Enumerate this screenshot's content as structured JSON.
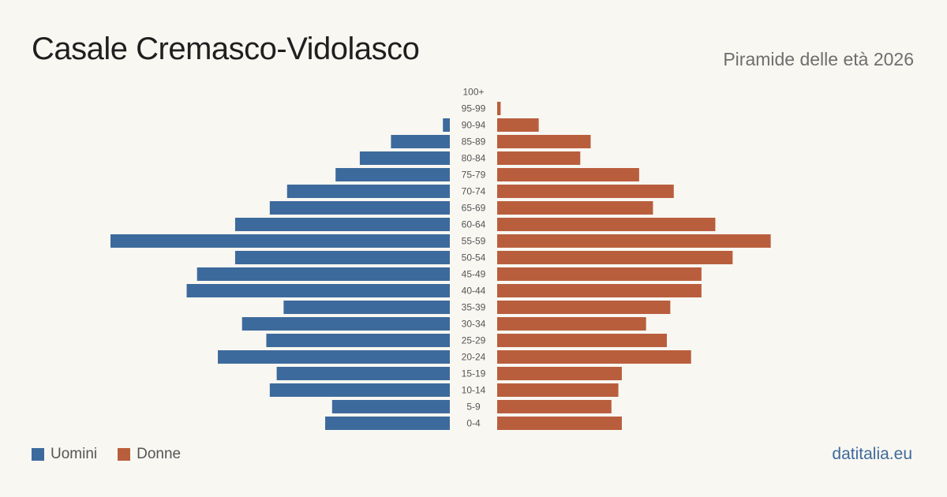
{
  "header": {
    "title": "Casale Cremasco-Vidolasco",
    "subtitle": "Piramide delle età 2026"
  },
  "legend": {
    "men_label": "Uomini",
    "women_label": "Donne"
  },
  "footer": {
    "source": "datitalia.eu"
  },
  "colors": {
    "men": "#3d6a9c",
    "women": "#b95e3d",
    "age_label": "#555555"
  },
  "chart_data": {
    "type": "bar",
    "orientation": "horizontal-pyramid",
    "categories": [
      "100+",
      "95-99",
      "90-94",
      "85-89",
      "80-84",
      "75-79",
      "70-74",
      "65-69",
      "60-64",
      "55-59",
      "50-54",
      "45-49",
      "40-44",
      "35-39",
      "30-34",
      "25-29",
      "20-24",
      "15-19",
      "10-14",
      "5-9",
      "0-4"
    ],
    "series": [
      {
        "name": "Uomini",
        "values": [
          0,
          0,
          2,
          17,
          26,
          33,
          47,
          52,
          62,
          98,
          62,
          73,
          76,
          48,
          60,
          53,
          67,
          50,
          52,
          34,
          36
        ]
      },
      {
        "name": "Donne",
        "values": [
          0,
          1,
          12,
          27,
          24,
          41,
          51,
          45,
          63,
          79,
          68,
          59,
          59,
          50,
          43,
          49,
          56,
          36,
          35,
          33,
          36
        ]
      }
    ],
    "xlim": [
      0,
      98
    ],
    "grid": false,
    "legend_position": "bottom-left"
  }
}
